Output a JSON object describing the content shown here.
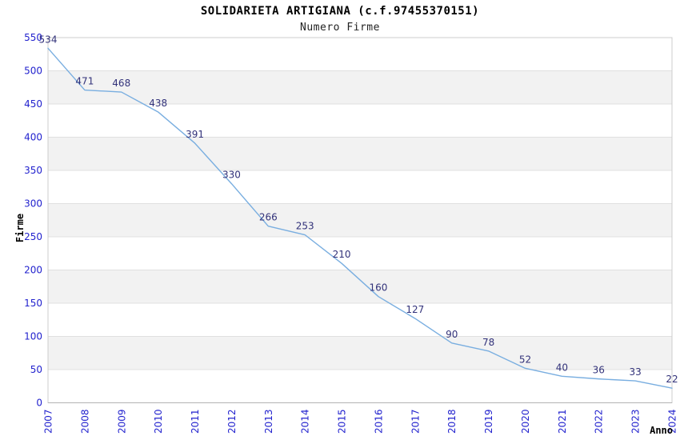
{
  "chart_data": {
    "type": "line",
    "title": "SOLIDARIETA ARTIGIANA (c.f.97455370151)",
    "subtitle": "Numero Firme",
    "xlabel": "Anno",
    "ylabel": "Firme",
    "categories": [
      "2007",
      "2008",
      "2009",
      "2010",
      "2011",
      "2012",
      "2013",
      "2014",
      "2015",
      "2016",
      "2017",
      "2018",
      "2019",
      "2020",
      "2021",
      "2022",
      "2023",
      "2024"
    ],
    "values": [
      534,
      471,
      468,
      438,
      391,
      330,
      266,
      253,
      210,
      160,
      127,
      90,
      78,
      52,
      40,
      36,
      33,
      22
    ],
    "ylim": [
      0,
      550
    ],
    "ytick_step": 50,
    "grid": "horizontal gridlines with alternating gray bands",
    "legend": "none",
    "colors": {
      "line": "#79AEE0",
      "tick_label": "#2222CE",
      "data_label": "#32327A",
      "band_fill": "#F2F2F2",
      "gridline": "#E0E0E0",
      "plot_border": "#CCCCCC",
      "bottom_axis": "#B3B3B3",
      "background": "#FFFFFF"
    }
  }
}
